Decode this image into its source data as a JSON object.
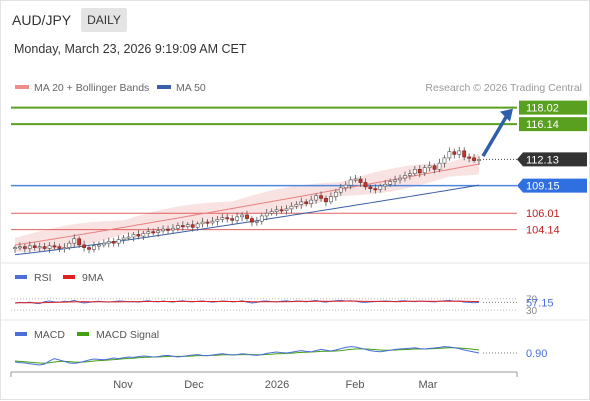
{
  "header": {
    "symbol": "AUD/JPY",
    "timeframe": "DAILY",
    "datetime": "Monday, March 23, 2026 9:19:09 AM CET"
  },
  "chart_data": {
    "type": "candlestick",
    "legend": [
      {
        "name": "MA 20 + Bollinger Bands",
        "color": "#f08c8c"
      },
      {
        "name": "MA 50",
        "color": "#3a5ea8"
      }
    ],
    "copyright": "Research © 2026 Trading Central",
    "x_ticks": [
      "Nov",
      "Dec",
      "2026",
      "Feb",
      "Mar"
    ],
    "y_range": [
      100.8,
      119.0
    ],
    "price_levels": [
      {
        "value": 118.02,
        "label": "118.02",
        "kind": "resistance"
      },
      {
        "value": 116.14,
        "label": "116.14",
        "kind": "resistance"
      },
      {
        "value": 112.13,
        "label": "112.13",
        "kind": "last"
      },
      {
        "value": 109.15,
        "label": "109.15",
        "kind": "pivot"
      },
      {
        "value": 106.01,
        "label": "106.01",
        "kind": "support"
      },
      {
        "value": 104.14,
        "label": "104.14",
        "kind": "support"
      }
    ],
    "trend_arrow": {
      "from": 112.5,
      "to": 117.9
    },
    "candles_close": [
      102.1,
      102.2,
      102.0,
      102.3,
      102.1,
      102.2,
      102.0,
      102.3,
      102.2,
      102.0,
      102.1,
      102.6,
      103.1,
      102.4,
      102.1,
      101.9,
      102.3,
      102.4,
      102.6,
      102.8,
      102.6,
      103.0,
      103.2,
      103.3,
      103.6,
      103.4,
      103.7,
      103.9,
      103.8,
      104.0,
      104.2,
      104.1,
      104.3,
      104.6,
      104.5,
      104.7,
      104.4,
      104.8,
      105.0,
      104.9,
      105.1,
      105.3,
      105.5,
      105.4,
      105.2,
      105.6,
      105.8,
      105.4,
      105.0,
      105.1,
      105.7,
      106.0,
      106.2,
      106.4,
      106.3,
      106.5,
      106.8,
      107.0,
      107.3,
      107.1,
      107.5,
      108.0,
      107.7,
      107.3,
      107.9,
      108.4,
      108.9,
      109.2,
      109.8,
      109.9,
      109.5,
      109.0,
      108.8,
      108.7,
      109.1,
      109.3,
      109.6,
      109.8,
      110.0,
      110.3,
      110.5,
      111.0,
      110.6,
      111.2,
      111.4,
      111.0,
      111.7,
      112.3,
      113.0,
      112.7,
      113.1,
      112.4,
      112.3,
      112.0,
      112.13
    ],
    "bands": {
      "ma20_start": 102.4,
      "ma20_end": 111.6,
      "ma50_start": 101.3,
      "ma50_end": 109.2
    },
    "rsi": {
      "label": "RSI",
      "ma_label": "9MA",
      "value": 57.15,
      "levels": [
        70,
        30
      ],
      "level_labels": [
        "70",
        "30"
      ],
      "color": "#4a6fd8",
      "ma_color": "#e02020",
      "series": [
        55,
        57,
        56,
        58,
        54,
        53,
        60,
        62,
        59,
        58,
        61,
        60,
        64,
        58,
        55,
        57,
        60,
        61,
        59,
        58,
        60,
        62,
        61,
        59,
        60,
        58,
        61,
        63,
        60,
        59,
        62,
        60,
        58,
        61,
        63,
        60,
        59,
        61,
        62,
        60,
        58,
        60,
        62,
        61,
        59,
        60,
        63,
        58,
        55,
        57,
        61,
        62,
        60,
        59,
        61,
        63,
        60,
        62,
        61,
        59,
        62,
        64,
        60,
        58,
        61,
        63,
        64,
        62,
        63,
        61,
        58,
        57,
        59,
        60,
        61,
        62,
        61,
        60,
        62,
        63,
        61,
        60,
        62,
        61,
        60,
        59,
        61,
        63,
        64,
        61,
        62,
        58,
        57,
        56,
        57
      ]
    },
    "macd": {
      "label": "MACD",
      "signal_label": "MACD Signal",
      "value": 0.9,
      "color": "#4a6fd8",
      "signal_color": "#44a010",
      "series": [
        0.45,
        0.42,
        0.4,
        0.36,
        0.33,
        0.3,
        0.35,
        0.5,
        0.62,
        0.55,
        0.48,
        0.4,
        0.38,
        0.42,
        0.48,
        0.55,
        0.6,
        0.58,
        0.56,
        0.6,
        0.65,
        0.62,
        0.66,
        0.7,
        0.68,
        0.72,
        0.75,
        0.73,
        0.7,
        0.72,
        0.76,
        0.78,
        0.74,
        0.7,
        0.73,
        0.77,
        0.8,
        0.82,
        0.78,
        0.76,
        0.8,
        0.84,
        0.86,
        0.83,
        0.8,
        0.82,
        0.86,
        0.84,
        0.8,
        0.78,
        0.82,
        0.88,
        0.92,
        0.95,
        0.92,
        0.9,
        0.94,
        0.98,
        1.02,
        0.98,
        0.96,
        1.02,
        1.08,
        1.04,
        1.0,
        1.05,
        1.12,
        1.18,
        1.22,
        1.2,
        1.14,
        1.08,
        1.02,
        0.98,
        0.96,
        1.0,
        1.04,
        1.08,
        1.1,
        1.12,
        1.14,
        1.16,
        1.12,
        1.1,
        1.13,
        1.15,
        1.18,
        1.22,
        1.2,
        1.16,
        1.12,
        1.05,
        1.0,
        0.95,
        0.9
      ],
      "signal": [
        0.5,
        0.48,
        0.46,
        0.44,
        0.42,
        0.4,
        0.39,
        0.41,
        0.45,
        0.48,
        0.48,
        0.47,
        0.45,
        0.44,
        0.45,
        0.47,
        0.5,
        0.52,
        0.53,
        0.55,
        0.57,
        0.59,
        0.61,
        0.63,
        0.64,
        0.66,
        0.68,
        0.69,
        0.7,
        0.7,
        0.71,
        0.73,
        0.73,
        0.73,
        0.73,
        0.74,
        0.75,
        0.77,
        0.77,
        0.77,
        0.78,
        0.79,
        0.81,
        0.81,
        0.81,
        0.81,
        0.82,
        0.82,
        0.82,
        0.81,
        0.81,
        0.83,
        0.84,
        0.86,
        0.87,
        0.88,
        0.89,
        0.91,
        0.93,
        0.94,
        0.95,
        0.96,
        0.98,
        0.99,
        0.99,
        1.0,
        1.02,
        1.05,
        1.08,
        1.1,
        1.11,
        1.1,
        1.09,
        1.07,
        1.05,
        1.04,
        1.04,
        1.05,
        1.06,
        1.07,
        1.08,
        1.1,
        1.1,
        1.1,
        1.11,
        1.12,
        1.13,
        1.15,
        1.16,
        1.16,
        1.15,
        1.13,
        1.11,
        1.08,
        1.05
      ]
    }
  }
}
